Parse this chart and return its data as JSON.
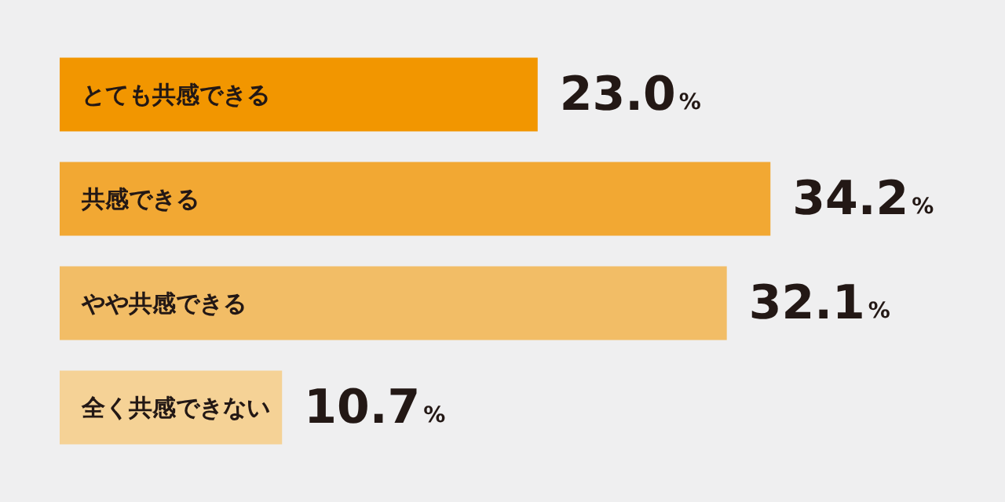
{
  "chart_data": {
    "type": "bar",
    "orientation": "horizontal",
    "categories": [
      "とても共感できる",
      "共感できる",
      "やや共感できる",
      "全く共感できない"
    ],
    "values": [
      23.0,
      34.2,
      32.1,
      10.7
    ],
    "colors": [
      "#f29600",
      "#f2a833",
      "#f2bd66",
      "#f5d296"
    ],
    "value_labels": [
      "23.0%",
      "34.2%",
      "32.1%",
      "10.7%"
    ]
  }
}
